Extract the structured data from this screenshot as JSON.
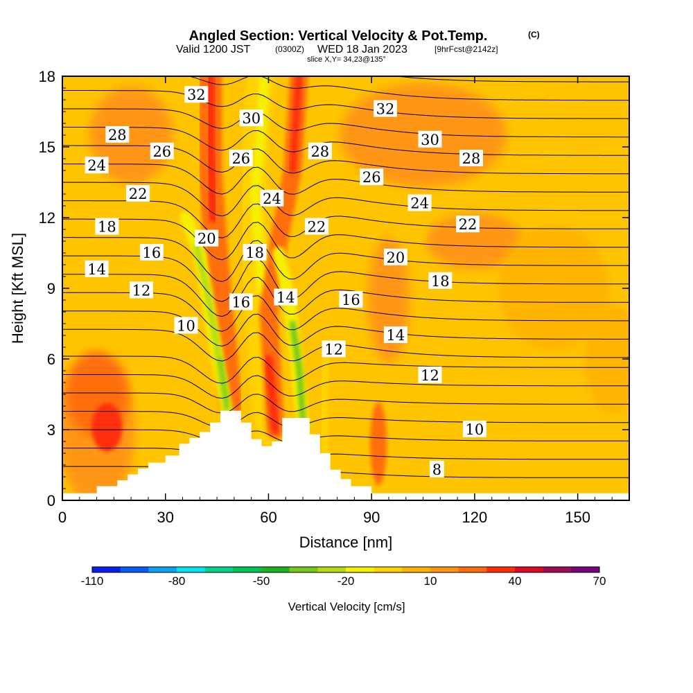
{
  "header": {
    "title": "Angled Section: Vertical Velocity & Pot.Temp.",
    "title_suffix": "(C)",
    "valid_prefix": "Valid 1200 JST",
    "valid_utc": "(0300Z)",
    "valid_date": "WED 18 Jan 2023",
    "forecast": "[9hrFcst@2142z]",
    "slice": "slice X,Y= 34,23@135°"
  },
  "chart_data": {
    "type": "heatmap",
    "xlabel": "Distance [nm]",
    "ylabel": "Height [Kft MSL]",
    "xlim": [
      0,
      165
    ],
    "ylim": [
      0,
      18
    ],
    "x_ticks": [
      0,
      30,
      60,
      90,
      120,
      150
    ],
    "y_ticks": [
      0,
      3,
      6,
      9,
      12,
      15,
      18
    ],
    "colorbar": {
      "label": "Vertical Velocity [cm/s]",
      "ticks": [
        -110,
        -80,
        -50,
        -20,
        10,
        40,
        70
      ],
      "levels": [
        -110,
        -100,
        -90,
        -80,
        -70,
        -60,
        -50,
        -40,
        -30,
        -20,
        -10,
        0,
        10,
        20,
        30,
        40,
        50,
        60,
        70
      ],
      "colors": [
        "#0a1ef0",
        "#0a5af5",
        "#0aa0f5",
        "#00e6f0",
        "#00d28c",
        "#00c35a",
        "#1eb41e",
        "#78c81e",
        "#b4dc14",
        "#f5f000",
        "#ffd200",
        "#ffb400",
        "#ff9614",
        "#ff6e0a",
        "#ff2d0a",
        "#dc0a28",
        "#a00a50",
        "#78007a"
      ]
    },
    "terrain_profile": [
      [
        0,
        0.3
      ],
      [
        10,
        0.3
      ],
      [
        10,
        0.6
      ],
      [
        16,
        0.6
      ],
      [
        16,
        0.85
      ],
      [
        19,
        0.85
      ],
      [
        19,
        1.1
      ],
      [
        22,
        1.1
      ],
      [
        22,
        1.35
      ],
      [
        25,
        1.35
      ],
      [
        25,
        1.6
      ],
      [
        30,
        1.6
      ],
      [
        30,
        1.9
      ],
      [
        34,
        1.9
      ],
      [
        34,
        2.4
      ],
      [
        37,
        2.4
      ],
      [
        37,
        2.65
      ],
      [
        40,
        2.65
      ],
      [
        40,
        2.9
      ],
      [
        43,
        2.9
      ],
      [
        43,
        3.3
      ],
      [
        46,
        3.3
      ],
      [
        46,
        3.8
      ],
      [
        52,
        3.8
      ],
      [
        52,
        3.3
      ],
      [
        55,
        3.3
      ],
      [
        55,
        2.6
      ],
      [
        58,
        2.6
      ],
      [
        58,
        2.3
      ],
      [
        61,
        2.3
      ],
      [
        61,
        2.5
      ],
      [
        64,
        2.5
      ],
      [
        64,
        3.5
      ],
      [
        72,
        3.5
      ],
      [
        72,
        2.8
      ],
      [
        75,
        2.8
      ],
      [
        75,
        2.0
      ],
      [
        78,
        2.0
      ],
      [
        78,
        1.3
      ],
      [
        81,
        1.3
      ],
      [
        81,
        0.9
      ],
      [
        84,
        0.9
      ],
      [
        84,
        0.6
      ],
      [
        90,
        0.6
      ],
      [
        90,
        0.3
      ],
      [
        165,
        0.3
      ]
    ],
    "vv_features": [
      {
        "x": 46,
        "y": 5.6,
        "value": -40
      },
      {
        "x": 68,
        "y": 5.3,
        "value": -50
      },
      {
        "x": 55,
        "y": 12.5,
        "value": -20
      },
      {
        "x": 60,
        "y": 5.0,
        "value": 30
      },
      {
        "x": 45,
        "y": 14.5,
        "value": 40
      },
      {
        "x": 13,
        "y": 3.1,
        "value": 20
      },
      {
        "x": 115,
        "y": 11.0,
        "value": 10
      },
      {
        "x": 145,
        "y": 9.0,
        "value": 0
      }
    ],
    "isentrope_labels": [
      {
        "text": "32",
        "x": 39,
        "y": 17.2
      },
      {
        "text": "30",
        "x": 55,
        "y": 16.2
      },
      {
        "text": "32",
        "x": 94,
        "y": 16.6
      },
      {
        "text": "28",
        "x": 16,
        "y": 15.5
      },
      {
        "text": "26",
        "x": 29,
        "y": 14.8
      },
      {
        "text": "30",
        "x": 107,
        "y": 15.3
      },
      {
        "text": "28",
        "x": 75,
        "y": 14.8
      },
      {
        "text": "26",
        "x": 52,
        "y": 14.5
      },
      {
        "text": "28",
        "x": 119,
        "y": 14.5
      },
      {
        "text": "24",
        "x": 10,
        "y": 14.2
      },
      {
        "text": "26",
        "x": 90,
        "y": 13.7
      },
      {
        "text": "22",
        "x": 22,
        "y": 13.0
      },
      {
        "text": "24",
        "x": 61,
        "y": 12.8
      },
      {
        "text": "24",
        "x": 104,
        "y": 12.6
      },
      {
        "text": "18",
        "x": 13,
        "y": 11.6
      },
      {
        "text": "22",
        "x": 74,
        "y": 11.6
      },
      {
        "text": "22",
        "x": 118,
        "y": 11.7
      },
      {
        "text": "20",
        "x": 42,
        "y": 11.1
      },
      {
        "text": "16",
        "x": 26,
        "y": 10.5
      },
      {
        "text": "18",
        "x": 56,
        "y": 10.5
      },
      {
        "text": "20",
        "x": 97,
        "y": 10.3
      },
      {
        "text": "14",
        "x": 10,
        "y": 9.8
      },
      {
        "text": "18",
        "x": 110,
        "y": 9.3
      },
      {
        "text": "12",
        "x": 23,
        "y": 8.9
      },
      {
        "text": "14",
        "x": 65,
        "y": 8.6
      },
      {
        "text": "16",
        "x": 52,
        "y": 8.4
      },
      {
        "text": "16",
        "x": 84,
        "y": 8.5
      },
      {
        "text": "10",
        "x": 36,
        "y": 7.4
      },
      {
        "text": "14",
        "x": 97,
        "y": 7.0
      },
      {
        "text": "12",
        "x": 79,
        "y": 6.4
      },
      {
        "text": "12",
        "x": 107,
        "y": 5.3
      },
      {
        "text": "10",
        "x": 120,
        "y": 3.0
      },
      {
        "text": "8",
        "x": 109,
        "y": 1.3
      }
    ]
  }
}
